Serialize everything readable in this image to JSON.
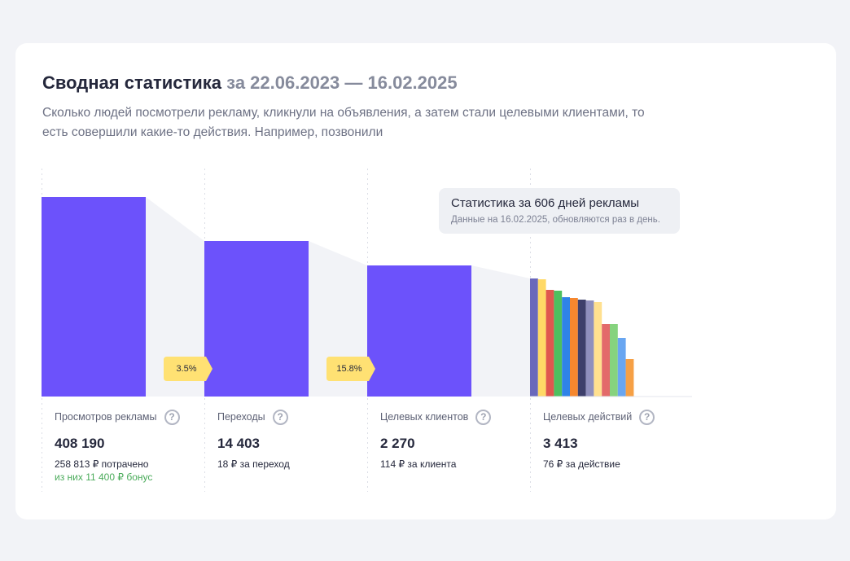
{
  "header": {
    "title": "Сводная статистика",
    "date_range": "за 22.06.2023 — 16.02.2025",
    "description": "Сколько людей посмотрели рекламу, кликнули на объявления, а затем стали целевыми клиентами, то есть совершили какие-то действия. Например, позвонили"
  },
  "tooltip": {
    "title": "Статистика за 606 дней рекламы",
    "subtitle": "Данные на 16.02.2025, обновляются раз в день."
  },
  "conversions": [
    "3.5%",
    "15.8%"
  ],
  "metrics": [
    {
      "label": "Просмотров рекламы",
      "value": "408 190",
      "sub": "258 813 ₽ потрачено",
      "bonus": "из них 11 400 ₽ бонус"
    },
    {
      "label": "Переходы",
      "value": "14 403",
      "sub": "18 ₽ за переход"
    },
    {
      "label": "Целевых клиентов",
      "value": "2 270",
      "sub": "114 ₽ за клиента"
    },
    {
      "label": "Целевых действий",
      "value": "3 413",
      "sub": "76 ₽ за действие"
    }
  ],
  "colors": {
    "bar": "#6c52fb",
    "flow": "#f2f3f7",
    "conversion_badge": "#ffe173",
    "bonus": "#4aab5a"
  },
  "icons": {
    "help": "question-circle-icon"
  },
  "action_bar_colors": [
    "#6a68bb",
    "#ffd966",
    "#e0574f",
    "#4dbf5f",
    "#2f83e8",
    "#f6872e",
    "#3d3f6b",
    "#8f8fbd",
    "#ffe08f",
    "#e36a6a",
    "#86d37e",
    "#69a6f1",
    "#f6a045"
  ],
  "chart_data": {
    "type": "bar",
    "categories": [
      "Просмотров рекламы",
      "Переходы",
      "Целевых клиентов",
      "Целевых действий"
    ],
    "values": [
      408190,
      14403,
      2270,
      3413
    ]
  }
}
